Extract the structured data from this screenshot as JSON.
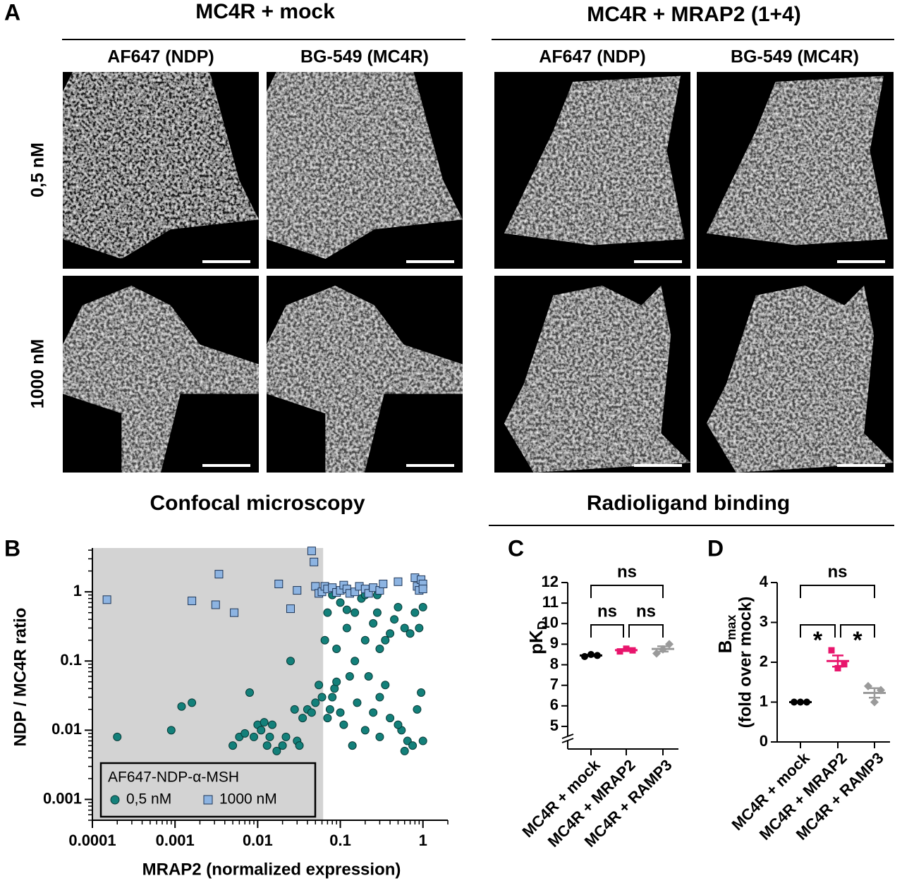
{
  "figure": {
    "panel_labels": [
      "A",
      "B",
      "C",
      "D"
    ],
    "panel_a": {
      "conditions": [
        {
          "title": "MC4R + mock",
          "channels": [
            "AF647 (NDP)",
            "BG-549 (MC4R)"
          ]
        },
        {
          "title": "MC4R + MRAP2 (1+4)",
          "channels": [
            "AF647 (NDP)",
            "BG-549 (MC4R)"
          ]
        }
      ],
      "concentrations": [
        "0,5 nM",
        "1000 nM"
      ]
    },
    "section_titles": [
      "Confocal microscopy",
      "Radioligand binding"
    ]
  },
  "chart_data": [
    {
      "type": "scatter",
      "xlabel": "MRAP2 (normalized expression)",
      "ylabel": "NDP / MC4R ratio",
      "xlog": true,
      "ylog": true,
      "xlim": [
        0.0001,
        2
      ],
      "ylim": [
        0.0005,
        4.3
      ],
      "xticks": [
        0.0001,
        0.001,
        0.01,
        0.1,
        1
      ],
      "yticks": [
        0.001,
        0.01,
        0.1,
        1
      ],
      "shaded_xrange": [
        0.0001,
        0.062
      ],
      "shade_color": "#d3d3d3",
      "legend_title": "AF647-NDP-α-MSH",
      "legend": "lower left",
      "series": [
        {
          "name": "0,5 nM",
          "color": "#13807a",
          "marker": "circle",
          "x": [
            0.0002,
            0.0009,
            0.0012,
            0.0016,
            0.005,
            0.006,
            0.007,
            0.008,
            0.009,
            0.01,
            0.011,
            0.012,
            0.013,
            0.014,
            0.015,
            0.017,
            0.02,
            0.022,
            0.025,
            0.028,
            0.03,
            0.032,
            0.035,
            0.04,
            0.045,
            0.05,
            0.055,
            0.06,
            0.065,
            0.07,
            0.075,
            0.08,
            0.085,
            0.09,
            0.1,
            0.1,
            0.11,
            0.12,
            0.13,
            0.14,
            0.15,
            0.16,
            0.18,
            0.2,
            0.2,
            0.22,
            0.25,
            0.25,
            0.28,
            0.3,
            0.3,
            0.35,
            0.4,
            0.45,
            0.5,
            0.55,
            0.6,
            0.65,
            0.7,
            0.75,
            0.8,
            0.85,
            0.9,
            0.95,
            1.0,
            1.0,
            0.5,
            0.35,
            0.15,
            0.09,
            0.12,
            0.2,
            0.3,
            0.4,
            0.08,
            0.07,
            0.28,
            0.6
          ],
          "values": [
            0.008,
            0.01,
            0.022,
            0.025,
            0.006,
            0.008,
            0.009,
            0.035,
            0.008,
            0.012,
            0.01,
            0.013,
            0.006,
            0.008,
            0.012,
            0.005,
            0.006,
            0.008,
            0.1,
            0.02,
            0.007,
            0.006,
            0.015,
            0.02,
            0.018,
            0.025,
            0.045,
            0.03,
            0.2,
            0.5,
            0.02,
            0.9,
            0.04,
            0.15,
            0.7,
            0.018,
            0.012,
            0.3,
            0.06,
            0.006,
            0.5,
            0.025,
            0.8,
            0.2,
            0.01,
            0.06,
            0.35,
            0.018,
            0.5,
            0.03,
            0.008,
            0.2,
            0.015,
            0.4,
            0.6,
            0.01,
            0.3,
            0.007,
            0.25,
            0.006,
            0.5,
            0.02,
            0.3,
            0.035,
            0.007,
            0.6,
            0.012,
            0.045,
            0.1,
            0.05,
            0.55,
            0.9,
            0.15,
            0.25,
            0.03,
            0.015,
            0.9,
            0.005
          ]
        },
        {
          "name": "1000 nM",
          "color": "#8db4e2",
          "marker": "square",
          "x": [
            0.00015,
            0.0016,
            0.0031,
            0.0034,
            0.0052,
            0.018,
            0.025,
            0.03,
            0.045,
            0.048,
            0.05,
            0.055,
            0.06,
            0.065,
            0.07,
            0.08,
            0.09,
            0.1,
            0.11,
            0.12,
            0.13,
            0.15,
            0.17,
            0.2,
            0.22,
            0.25,
            0.3,
            0.33,
            0.5,
            0.8,
            0.85,
            0.9,
            0.95,
            1.0,
            1.0
          ],
          "values": [
            0.77,
            0.74,
            0.65,
            1.8,
            0.5,
            1.3,
            0.57,
            1.05,
            3.9,
            2.7,
            1.2,
            0.95,
            1.0,
            1.2,
            1.1,
            1.15,
            0.98,
            1.05,
            1.25,
            1.1,
            0.95,
            1.0,
            1.2,
            1.1,
            0.95,
            1.15,
            1.05,
            1.3,
            1.4,
            1.6,
            1.2,
            1.05,
            1.5,
            1.3,
            1.1
          ]
        }
      ]
    },
    {
      "type": "dot",
      "ylabel": "pK",
      "ylabel_subscript": "D",
      "ylim": [
        3.9,
        12
      ],
      "yticks": [
        5,
        6,
        7,
        8,
        9,
        10,
        11,
        12
      ],
      "axis_break": true,
      "categories": [
        "MC4R + mock",
        "MC4R + MRAP2",
        "MC4R + RAMP3"
      ],
      "groups": [
        {
          "color": "#000000",
          "values": [
            8.4,
            8.5,
            8.45
          ],
          "mean": 8.45,
          "sem": 0.03
        },
        {
          "color": "#e8156c",
          "values": [
            8.65,
            8.78,
            8.7
          ],
          "mean": 8.71,
          "sem": 0.04
        },
        {
          "color": "#9a9a9a",
          "values": [
            8.55,
            8.75,
            9.0
          ],
          "mean": 8.77,
          "sem": 0.13
        }
      ],
      "comparisons": [
        {
          "between": [
            "MC4R + mock",
            "MC4R + RAMP3"
          ],
          "label": "ns"
        },
        {
          "between": [
            "MC4R + mock",
            "MC4R + MRAP2"
          ],
          "label": "ns"
        },
        {
          "between": [
            "MC4R + MRAP2",
            "MC4R + RAMP3"
          ],
          "label": "ns"
        }
      ]
    },
    {
      "type": "dot",
      "ylabel": "B",
      "ylabel_subscript": "max",
      "ylabel_line2": "(fold over mock)",
      "ylim": [
        0,
        4
      ],
      "yticks": [
        0,
        1,
        2,
        3,
        4
      ],
      "axis_break": false,
      "categories": [
        "MC4R + mock",
        "MC4R + MRAP2",
        "MC4R + RAMP3"
      ],
      "groups": [
        {
          "color": "#000000",
          "values": [
            1,
            1,
            1
          ],
          "mean": 1,
          "sem": 0
        },
        {
          "color": "#e8156c",
          "values": [
            2.3,
            1.85,
            1.95
          ],
          "mean": 2.03,
          "sem": 0.14
        },
        {
          "color": "#9a9a9a",
          "values": [
            1.4,
            1.0,
            1.3
          ],
          "mean": 1.23,
          "sem": 0.12
        }
      ],
      "comparisons": [
        {
          "between": [
            "MC4R + mock",
            "MC4R + RAMP3"
          ],
          "label": "ns"
        },
        {
          "between": [
            "MC4R + mock",
            "MC4R + MRAP2"
          ],
          "label": "*"
        },
        {
          "between": [
            "MC4R + MRAP2",
            "MC4R + RAMP3"
          ],
          "label": "*"
        }
      ]
    }
  ]
}
